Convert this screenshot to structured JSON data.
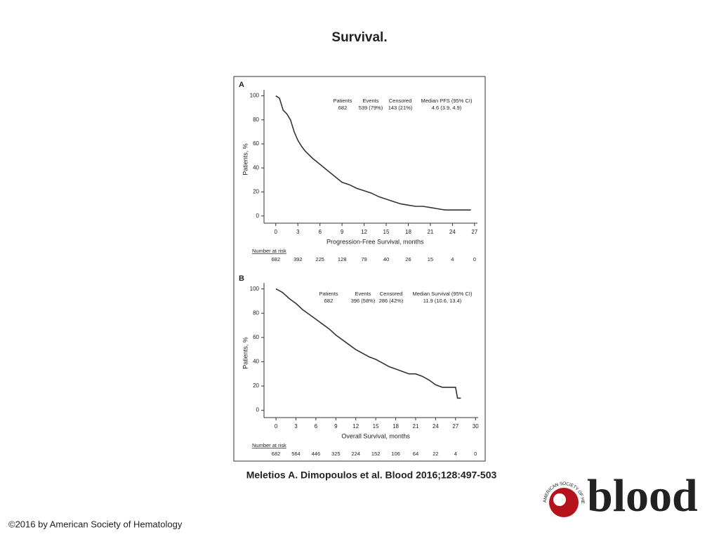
{
  "title": "Survival.",
  "citation": "Meletios A. Dimopoulos et al. Blood 2016;128:497-503",
  "copyright": "©2016 by American Society of Hematology",
  "logo": {
    "word": "blood",
    "society": "AMERICAN SOCIETY OF HEMATOLOGY"
  },
  "chart_data": [
    {
      "type": "line",
      "panel": "A",
      "step": true,
      "xlabel": "Progression-Free Survival, months",
      "ylabel": "Patients, %",
      "xlim": [
        -1.6,
        27.4
      ],
      "ylim": [
        -6,
        105
      ],
      "xticks": [
        0,
        3,
        6,
        9,
        12,
        15,
        18,
        21,
        24,
        27
      ],
      "yticks": [
        0,
        20,
        40,
        60,
        80,
        100
      ],
      "legend_table": {
        "headers": [
          "Patients",
          "Events",
          "Censored",
          "Median PFS (95% CI)"
        ],
        "row": [
          "682",
          "539 (79%)",
          "143 (21%)",
          "4.6 (3.9, 4.9)"
        ]
      },
      "at_risk": {
        "label": "Number at risk",
        "values": [
          682,
          392,
          225,
          128,
          79,
          40,
          26,
          15,
          4,
          0
        ]
      },
      "series": [
        {
          "name": "PFS",
          "color": "#333333",
          "x": [
            0,
            0.5,
            1,
            1.5,
            2,
            2.5,
            3,
            3.5,
            4,
            5,
            6,
            7,
            8,
            9,
            10,
            11,
            12,
            13,
            14,
            15,
            16,
            17,
            18,
            19,
            20,
            21,
            22,
            23,
            24,
            25,
            26.5
          ],
          "values": [
            100,
            98,
            88,
            85,
            80,
            70,
            63,
            58,
            54,
            48,
            43,
            38,
            33,
            28,
            26,
            23,
            21,
            19,
            16,
            14,
            12,
            10,
            9,
            8,
            8,
            7,
            6,
            5,
            5,
            5,
            5
          ]
        }
      ]
    },
    {
      "type": "line",
      "panel": "B",
      "step": true,
      "xlabel": "Overall Survival, months",
      "ylabel": "Patients, %",
      "xlim": [
        -1.8,
        30.4
      ],
      "ylim": [
        -6,
        105
      ],
      "xticks": [
        0,
        3,
        6,
        9,
        12,
        15,
        18,
        21,
        24,
        27,
        30
      ],
      "yticks": [
        0,
        20,
        40,
        60,
        80,
        100
      ],
      "legend_table": {
        "headers": [
          "Patients",
          "Events",
          "Censored",
          "Median Survival (95% CI)"
        ],
        "row": [
          "682",
          "396 (58%)",
          "286 (42%)",
          "11.9 (10.6, 13.4)"
        ]
      },
      "at_risk": {
        "label": "Number at risk",
        "values": [
          682,
          564,
          446,
          325,
          224,
          152,
          106,
          64,
          22,
          4,
          0
        ]
      },
      "series": [
        {
          "name": "OS",
          "color": "#333333",
          "x": [
            0,
            1,
            2,
            3,
            4,
            5,
            6,
            7,
            8,
            9,
            10,
            11,
            12,
            13,
            14,
            15,
            16,
            17,
            18,
            19,
            20,
            21,
            22,
            23,
            24,
            25,
            26,
            27,
            27.3,
            27.8
          ],
          "values": [
            100,
            97,
            92,
            88,
            83,
            79,
            75,
            71,
            67,
            62,
            58,
            54,
            50,
            47,
            44,
            42,
            39,
            36,
            34,
            32,
            30,
            30,
            28,
            25,
            21,
            19,
            19,
            19,
            10,
            10
          ]
        }
      ]
    }
  ]
}
